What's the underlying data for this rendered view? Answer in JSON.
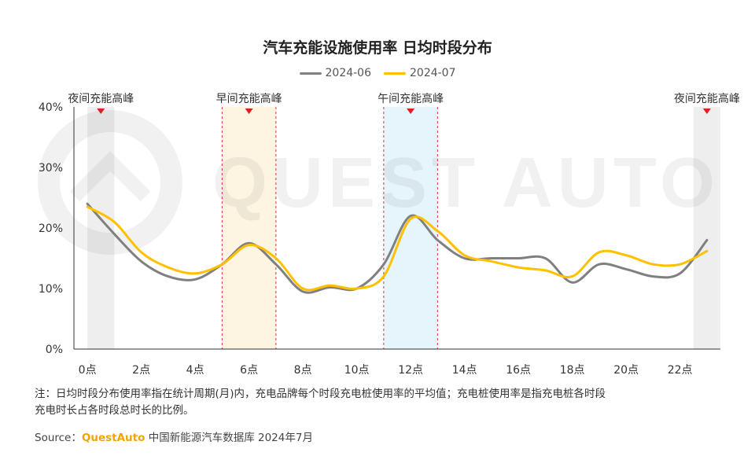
{
  "chart_data": {
    "type": "line",
    "title": "汽车充能设施使用率 日均时段分布",
    "x": [
      0,
      1,
      2,
      3,
      4,
      5,
      6,
      7,
      8,
      9,
      10,
      11,
      12,
      13,
      14,
      15,
      16,
      17,
      18,
      19,
      20,
      21,
      22,
      23
    ],
    "x_tick_values": [
      0,
      2,
      4,
      6,
      8,
      10,
      12,
      14,
      16,
      18,
      20,
      22
    ],
    "x_tick_labels": [
      "0点",
      "2点",
      "4点",
      "6点",
      "8点",
      "10点",
      "12点",
      "14点",
      "16点",
      "18点",
      "20点",
      "22点"
    ],
    "xlim": [
      -0.5,
      23.5
    ],
    "ylim": [
      0,
      40
    ],
    "y_tick_values": [
      0,
      10,
      20,
      30,
      40
    ],
    "y_tick_labels": [
      "0%",
      "10%",
      "20%",
      "30%",
      "40%"
    ],
    "series": [
      {
        "name": "2024-06",
        "color": "#808080",
        "values": [
          24.0,
          19.0,
          14.5,
          12.0,
          11.5,
          14.0,
          17.5,
          14.0,
          9.5,
          10.2,
          10.0,
          14.0,
          22.0,
          18.0,
          15.0,
          15.0,
          15.0,
          15.0,
          11.0,
          14.0,
          13.2,
          12.0,
          12.5,
          18.0
        ]
      },
      {
        "name": "2024-07",
        "color": "#FFC000",
        "values": [
          23.5,
          21.0,
          16.0,
          13.5,
          12.5,
          14.0,
          17.2,
          15.0,
          10.0,
          10.5,
          10.0,
          12.0,
          21.5,
          19.5,
          15.5,
          14.5,
          13.5,
          13.0,
          12.0,
          16.0,
          15.5,
          14.0,
          14.0,
          16.2
        ]
      }
    ],
    "highlight_bands": [
      {
        "label": "夜间充能高峰",
        "x_start": 0,
        "x_end": 1,
        "fill": "#eeeeee",
        "dashed": false
      },
      {
        "label": "早间充能高峰",
        "x_start": 5,
        "x_end": 7,
        "fill": "#fdf5e1",
        "dashed": true
      },
      {
        "label": "午间充能高峰",
        "x_start": 11,
        "x_end": 13,
        "fill": "#e6f4fb",
        "dashed": true
      },
      {
        "label": "夜间充能高峰",
        "x_start": 22.5,
        "x_end": 23.5,
        "fill": "#eeeeee",
        "dashed": false
      }
    ],
    "watermark": "QUEST AUTO",
    "grid": false,
    "legend_position": "top-center"
  },
  "notes": [
    "注：日均时段分布使用率指在统计周期(月)内，充电品牌每个时段充电桩使用率的平均值；充电桩使用率是指充电桩各时段",
    "充电时长占各时段总时长的比例。"
  ],
  "source": {
    "prefix": "Source：",
    "brand": "QuestAuto",
    "text": "中国新能源汽车数据库 2024年7月"
  }
}
